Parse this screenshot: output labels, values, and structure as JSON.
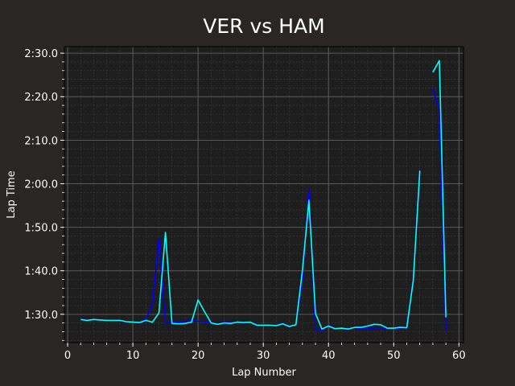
{
  "chart_data": {
    "type": "line",
    "title": "VER vs HAM",
    "xlabel": "Lap Number",
    "ylabel": "Lap Time",
    "xlim": [
      -0.5,
      60.7
    ],
    "ylim": [
      83.5,
      151.5
    ],
    "grid": true,
    "x_ticks": [
      0,
      10,
      20,
      30,
      40,
      50,
      60
    ],
    "y_ticks": [
      {
        "value": 90,
        "label": "1:30.0"
      },
      {
        "value": 100,
        "label": "1:40.0"
      },
      {
        "value": 110,
        "label": "1:50.0"
      },
      {
        "value": 120,
        "label": "2:00.0"
      },
      {
        "value": 130,
        "label": "2:10.0"
      },
      {
        "value": 140,
        "label": "2:20.0"
      },
      {
        "value": 150,
        "label": "2:30.0"
      }
    ],
    "colors": {
      "background": "#292625",
      "plot_background": "#1e1e1e",
      "major_grid": "#5a5a5a",
      "minor_grid": "#3a3a3a",
      "axis_text": "#ffffff"
    },
    "series": [
      {
        "color": "#0000ff",
        "points": [
          [
            2,
            88.9
          ],
          [
            3,
            88.6
          ],
          [
            4,
            88.8
          ],
          [
            5,
            88.7
          ],
          [
            6,
            88.6
          ],
          [
            7,
            88.6
          ],
          [
            8,
            88.6
          ],
          [
            9,
            88.3
          ],
          [
            10,
            88.1
          ],
          [
            11,
            88.0
          ],
          [
            12,
            89.0
          ],
          [
            13,
            92.0
          ],
          [
            14,
            107.5
          ],
          [
            15,
            88.0
          ],
          [
            16,
            88.2
          ],
          [
            17,
            88.1
          ],
          [
            18,
            88.3
          ],
          [
            19,
            88.8
          ],
          [
            20,
            88.4
          ],
          [
            21,
            88.3
          ],
          [
            22,
            88.1
          ],
          [
            23,
            87.8
          ],
          [
            24,
            88.2
          ],
          [
            25,
            88.0
          ],
          [
            26,
            88.1
          ],
          [
            27,
            88.0
          ],
          [
            28,
            88.2
          ],
          [
            29,
            87.6
          ],
          [
            30,
            87.6
          ],
          [
            31,
            87.6
          ],
          [
            32,
            87.4
          ],
          [
            33,
            87.9
          ],
          [
            34,
            87.2
          ],
          [
            35,
            87.6
          ],
          [
            36,
            98.0
          ],
          [
            37,
            118.8
          ],
          [
            38,
            86.2
          ],
          [
            39,
            86.3
          ],
          [
            40,
            87.4
          ],
          [
            41,
            86.8
          ],
          [
            42,
            86.7
          ],
          [
            43,
            86.5
          ],
          [
            44,
            87.0
          ],
          [
            45,
            86.6
          ],
          [
            46,
            86.7
          ],
          [
            47,
            86.8
          ],
          [
            48,
            86.9
          ],
          [
            49,
            86.7
          ],
          [
            50,
            86.8
          ],
          [
            51,
            86.8
          ],
          [
            52,
            87.2
          ],
          [
            53,
            98.0
          ],
          [
            54,
            123.0
          ],
          null,
          [
            56,
            141.8
          ],
          [
            57,
            137.0
          ],
          [
            58,
            86.2
          ]
        ]
      },
      {
        "color": "#00ffff",
        "points": [
          [
            2,
            88.8
          ],
          [
            3,
            88.6
          ],
          [
            4,
            88.8
          ],
          [
            5,
            88.7
          ],
          [
            6,
            88.6
          ],
          [
            7,
            88.6
          ],
          [
            8,
            88.6
          ],
          [
            9,
            88.3
          ],
          [
            10,
            88.2
          ],
          [
            11,
            88.1
          ],
          [
            12,
            88.6
          ],
          [
            13,
            88.2
          ],
          [
            14,
            90.3
          ],
          [
            15,
            108.8
          ],
          [
            16,
            87.9
          ],
          [
            17,
            87.8
          ],
          [
            18,
            87.9
          ],
          [
            19,
            88.2
          ],
          [
            20,
            93.3
          ],
          [
            21,
            90.6
          ],
          [
            22,
            88.0
          ],
          [
            23,
            87.7
          ],
          [
            24,
            88.0
          ],
          [
            25,
            87.9
          ],
          [
            26,
            88.2
          ],
          [
            27,
            88.1
          ],
          [
            28,
            88.2
          ],
          [
            29,
            87.5
          ],
          [
            30,
            87.5
          ],
          [
            31,
            87.5
          ],
          [
            32,
            87.4
          ],
          [
            33,
            87.8
          ],
          [
            34,
            87.2
          ],
          [
            35,
            87.6
          ],
          [
            36,
            100.0
          ],
          [
            37,
            116.2
          ],
          [
            38,
            90.2
          ],
          [
            39,
            86.6
          ],
          [
            40,
            87.3
          ],
          [
            41,
            86.7
          ],
          [
            42,
            86.8
          ],
          [
            43,
            86.6
          ],
          [
            44,
            87.0
          ],
          [
            45,
            87.0
          ],
          [
            46,
            87.3
          ],
          [
            47,
            87.7
          ],
          [
            48,
            87.6
          ],
          [
            49,
            86.8
          ],
          [
            50,
            86.8
          ],
          [
            51,
            87.0
          ],
          [
            52,
            86.9
          ],
          [
            53,
            97.8
          ],
          [
            54,
            123.0
          ],
          null,
          [
            56,
            145.6
          ],
          [
            57,
            148.3
          ],
          [
            58,
            89.3
          ]
        ]
      }
    ]
  }
}
